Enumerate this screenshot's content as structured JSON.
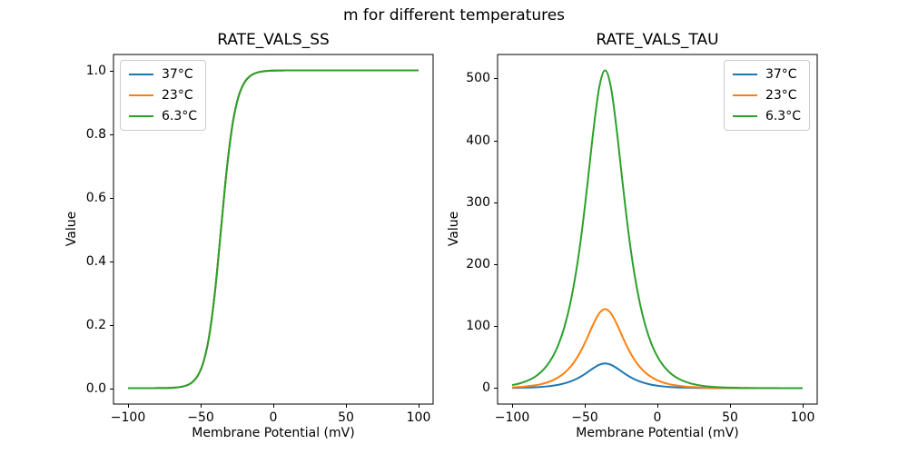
{
  "figure": {
    "suptitle": "m for different temperatures",
    "background": "#ffffff"
  },
  "chart_data": [
    {
      "type": "line",
      "title": "RATE_VALS_SS",
      "xlabel": "Membrane Potential (mV)",
      "ylabel": "Value",
      "legend_position": "upper-left",
      "grid": false,
      "xlim": [
        -110,
        110
      ],
      "ylim": [
        -0.05,
        1.05
      ],
      "xticks": [
        -100,
        -50,
        0,
        50,
        100
      ],
      "xtick_labels": [
        "−100",
        "−50",
        "0",
        "50",
        "100"
      ],
      "yticks": [
        0.0,
        0.2,
        0.4,
        0.6,
        0.8,
        1.0
      ],
      "ytick_labels": [
        "0.0",
        "0.2",
        "0.4",
        "0.6",
        "0.8",
        "1.0"
      ],
      "x": [
        -100,
        -96,
        -92,
        -88,
        -84,
        -80,
        -76,
        -72,
        -68,
        -64,
        -60,
        -56,
        -52,
        -48,
        -44,
        -40,
        -36,
        -32,
        -28,
        -24,
        -20,
        -16,
        -12,
        -8,
        -4,
        0,
        4,
        8,
        12,
        16,
        20,
        24,
        28,
        32,
        36,
        40,
        44,
        48,
        52,
        56,
        60,
        64,
        68,
        72,
        76,
        80,
        84,
        88,
        92,
        96,
        100
      ],
      "series": [
        {
          "name": "37°C",
          "color": "#1f77b4",
          "values": [
            0.0,
            0.0,
            0.0,
            0.0,
            0.0001,
            0.0002,
            0.0003,
            0.0007,
            0.0017,
            0.0037,
            0.0082,
            0.018,
            0.0392,
            0.0832,
            0.168,
            0.31,
            0.5,
            0.69,
            0.832,
            0.9168,
            0.9608,
            0.982,
            0.9918,
            0.9963,
            0.9983,
            0.9993,
            0.9997,
            0.9999,
            0.9999,
            1.0,
            1.0,
            1.0,
            1.0,
            1.0,
            1.0,
            1.0,
            1.0,
            1.0,
            1.0,
            1.0,
            1.0,
            1.0,
            1.0,
            1.0,
            1.0,
            1.0,
            1.0,
            1.0,
            1.0,
            1.0,
            1.0
          ]
        },
        {
          "name": "23°C",
          "color": "#ff7f0e",
          "values": [
            0.0,
            0.0,
            0.0,
            0.0,
            0.0001,
            0.0002,
            0.0003,
            0.0007,
            0.0017,
            0.0037,
            0.0082,
            0.018,
            0.0392,
            0.0832,
            0.168,
            0.31,
            0.5,
            0.69,
            0.832,
            0.9168,
            0.9608,
            0.982,
            0.9918,
            0.9963,
            0.9983,
            0.9993,
            0.9997,
            0.9999,
            0.9999,
            1.0,
            1.0,
            1.0,
            1.0,
            1.0,
            1.0,
            1.0,
            1.0,
            1.0,
            1.0,
            1.0,
            1.0,
            1.0,
            1.0,
            1.0,
            1.0,
            1.0,
            1.0,
            1.0,
            1.0,
            1.0,
            1.0
          ]
        },
        {
          "name": "6.3°C",
          "color": "#2ca02c",
          "values": [
            0.0,
            0.0,
            0.0,
            0.0,
            0.0001,
            0.0002,
            0.0003,
            0.0007,
            0.0017,
            0.0037,
            0.0082,
            0.018,
            0.0392,
            0.0832,
            0.168,
            0.31,
            0.5,
            0.69,
            0.832,
            0.9168,
            0.9608,
            0.982,
            0.9918,
            0.9963,
            0.9983,
            0.9993,
            0.9997,
            0.9999,
            0.9999,
            1.0,
            1.0,
            1.0,
            1.0,
            1.0,
            1.0,
            1.0,
            1.0,
            1.0,
            1.0,
            1.0,
            1.0,
            1.0,
            1.0,
            1.0,
            1.0,
            1.0,
            1.0,
            1.0,
            1.0,
            1.0,
            1.0
          ]
        }
      ]
    },
    {
      "type": "line",
      "title": "RATE_VALS_TAU",
      "xlabel": "Membrane Potential (mV)",
      "ylabel": "Value",
      "legend_position": "upper-right",
      "grid": false,
      "xlim": [
        -110,
        110
      ],
      "ylim": [
        -25.7,
        538.7
      ],
      "xticks": [
        -100,
        -50,
        0,
        50,
        100
      ],
      "xtick_labels": [
        "−100",
        "−50",
        "0",
        "50",
        "100"
      ],
      "yticks": [
        0,
        100,
        200,
        300,
        400,
        500
      ],
      "ytick_labels": [
        "0",
        "100",
        "200",
        "300",
        "400",
        "500"
      ],
      "x": [
        -100,
        -96,
        -92,
        -88,
        -84,
        -80,
        -76,
        -72,
        -68,
        -64,
        -60,
        -56,
        -52,
        -48,
        -44,
        -40,
        -36,
        -32,
        -28,
        -24,
        -20,
        -16,
        -12,
        -8,
        -4,
        0,
        4,
        8,
        12,
        16,
        20,
        24,
        28,
        32,
        36,
        40,
        44,
        48,
        52,
        56,
        60,
        64,
        68,
        72,
        76,
        80,
        84,
        88,
        92,
        96,
        100
      ],
      "series": [
        {
          "name": "37°C",
          "color": "#1f77b4",
          "values": [
            0.4,
            0.5,
            0.8,
            1.0,
            1.5,
            2.0,
            2.8,
            4.0,
            5.5,
            7.7,
            10.6,
            14.6,
            19.7,
            25.9,
            32.4,
            37.8,
            39.9,
            37.8,
            32.4,
            25.9,
            19.7,
            14.6,
            10.6,
            7.7,
            5.5,
            4.0,
            2.8,
            2.0,
            1.5,
            1.0,
            0.8,
            0.5,
            0.4,
            0.3,
            0.2,
            0.1,
            0.1,
            0.1,
            0.1,
            0.0,
            0.0,
            0.0,
            0.0,
            0.0,
            0.0,
            0.0,
            0.0,
            0.0,
            0.0,
            0.0,
            0.0
          ]
        },
        {
          "name": "23°C",
          "color": "#ff7f0e",
          "values": [
            1.2,
            1.7,
            2.4,
            3.4,
            4.7,
            6.5,
            9.1,
            12.7,
            17.7,
            24.5,
            34.0,
            46.6,
            63.0,
            82.8,
            103.8,
            120.9,
            127.7,
            120.9,
            103.8,
            82.8,
            63.0,
            46.6,
            34.0,
            24.5,
            17.7,
            12.7,
            9.1,
            6.5,
            4.7,
            3.4,
            2.4,
            1.7,
            1.2,
            0.9,
            0.6,
            0.4,
            0.3,
            0.2,
            0.2,
            0.1,
            0.1,
            0.1,
            0.0,
            0.0,
            0.0,
            0.0,
            0.0,
            0.0,
            0.0,
            0.0,
            0.0
          ]
        },
        {
          "name": "6.3°C",
          "color": "#2ca02c",
          "values": [
            5.0,
            6.9,
            9.7,
            13.5,
            18.8,
            26.2,
            36.6,
            51.0,
            71.0,
            98.6,
            136.4,
            187.1,
            252.9,
            332.5,
            416.9,
            485.8,
            513.0,
            485.8,
            416.9,
            332.5,
            252.9,
            187.1,
            136.4,
            98.6,
            71.0,
            51.0,
            36.6,
            26.2,
            18.8,
            13.5,
            9.7,
            6.9,
            5.0,
            3.5,
            2.5,
            1.8,
            1.3,
            0.9,
            0.7,
            0.5,
            0.3,
            0.2,
            0.2,
            0.1,
            0.1,
            0.1,
            0.0,
            0.0,
            0.0,
            0.0,
            0.0
          ]
        }
      ]
    }
  ]
}
